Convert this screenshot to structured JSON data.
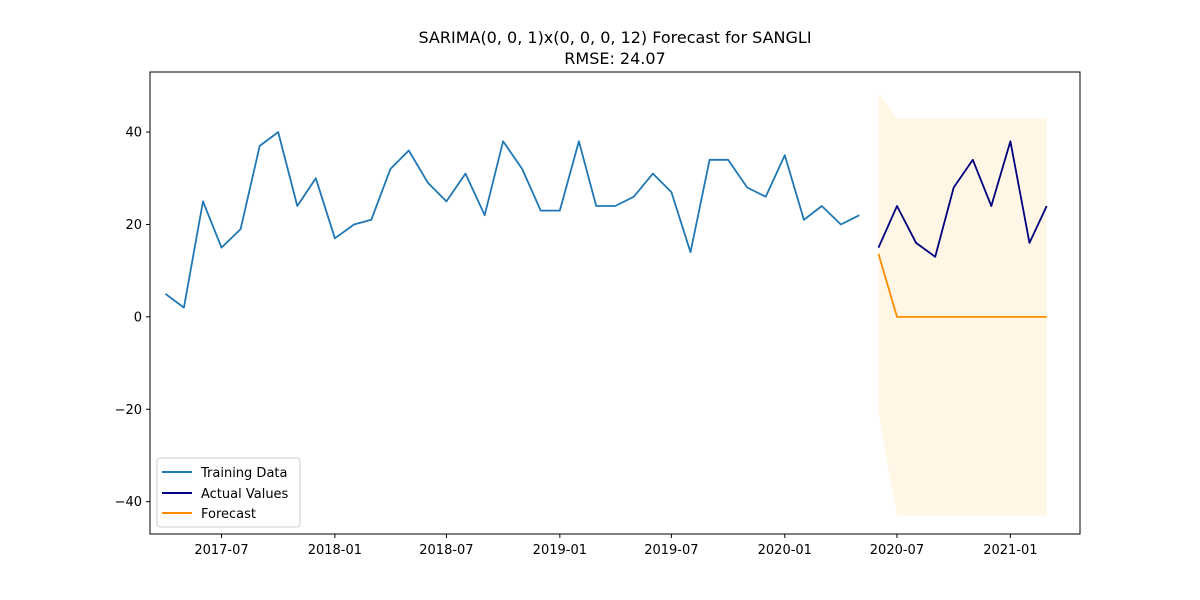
{
  "chart_data": {
    "type": "line",
    "title": "SARIMA(0, 0, 1)x(0, 0, 0, 12) Forecast for SANGLI",
    "subtitle": "RMSE: 24.07",
    "xlabel": "",
    "ylabel": "",
    "xlim": [
      "2017-03-07",
      "2021-04-24"
    ],
    "ylim": [
      -47,
      53
    ],
    "x_ticks": [
      "2017-07-01",
      "2018-01-01",
      "2018-07-01",
      "2019-01-01",
      "2019-07-01",
      "2020-01-01",
      "2020-07-01",
      "2021-01-01"
    ],
    "x_tick_labels": [
      "2017-07",
      "2018-01",
      "2018-07",
      "2019-01",
      "2019-07",
      "2020-01",
      "2020-07",
      "2021-01"
    ],
    "y_ticks": [
      -40,
      -20,
      0,
      20,
      40
    ],
    "y_tick_labels": [
      "−40",
      "−20",
      "0",
      "20",
      "40"
    ],
    "grid": false,
    "legend_position": "lower-left",
    "series": [
      {
        "name": "Training Data",
        "color": "#1f77b4",
        "x": [
          "2017-04-01",
          "2017-05-01",
          "2017-06-01",
          "2017-07-01",
          "2017-08-01",
          "2017-09-01",
          "2017-10-01",
          "2017-11-01",
          "2017-12-01",
          "2018-01-01",
          "2018-02-01",
          "2018-03-01",
          "2018-04-01",
          "2018-05-01",
          "2018-06-01",
          "2018-07-01",
          "2018-08-01",
          "2018-09-01",
          "2018-10-01",
          "2018-11-01",
          "2018-12-01",
          "2019-01-01",
          "2019-02-01",
          "2019-03-01",
          "2019-04-01",
          "2019-05-01",
          "2019-06-01",
          "2019-07-01",
          "2019-08-01",
          "2019-09-01",
          "2019-10-01",
          "2019-11-01",
          "2019-12-01",
          "2020-01-01",
          "2020-02-01",
          "2020-03-01",
          "2020-04-01",
          "2020-05-01"
        ],
        "values": [
          5,
          2,
          25,
          15,
          19,
          37,
          40,
          24,
          30,
          17,
          20,
          21,
          32,
          36,
          29,
          25,
          31,
          22,
          38,
          32,
          23,
          23,
          38,
          24,
          24,
          26,
          31,
          27,
          14,
          34,
          34,
          28,
          26,
          35,
          21,
          24,
          20,
          22
        ]
      },
      {
        "name": "Actual Values",
        "color": "#000080",
        "x": [
          "2020-06-01",
          "2020-07-01",
          "2020-08-01",
          "2020-09-01",
          "2020-10-01",
          "2020-11-01",
          "2020-12-01",
          "2021-01-01",
          "2021-02-01",
          "2021-03-01"
        ],
        "values": [
          15,
          24,
          16,
          13,
          28,
          34,
          24,
          38,
          16,
          24
        ]
      },
      {
        "name": "Forecast",
        "color": "#ff8c00",
        "x": [
          "2020-06-01",
          "2020-07-01",
          "2020-08-01",
          "2020-09-01",
          "2020-10-01",
          "2020-11-01",
          "2020-12-01",
          "2021-01-01",
          "2021-02-01",
          "2021-03-01"
        ],
        "values": [
          13.6,
          0,
          0,
          0,
          0,
          0,
          0,
          0,
          0,
          0
        ]
      }
    ],
    "confidence_band": {
      "color": "#ffa500",
      "x": [
        "2020-06-01",
        "2020-07-01",
        "2020-08-01",
        "2020-09-01",
        "2020-10-01",
        "2020-11-01",
        "2020-12-01",
        "2021-01-01",
        "2021-02-01",
        "2021-03-01"
      ],
      "lower": [
        -21,
        -43,
        -43,
        -43,
        -43,
        -43,
        -43,
        -43,
        -43,
        -43
      ],
      "upper": [
        48.5,
        43,
        43,
        43,
        43,
        43,
        43,
        43,
        43,
        43
      ]
    }
  }
}
